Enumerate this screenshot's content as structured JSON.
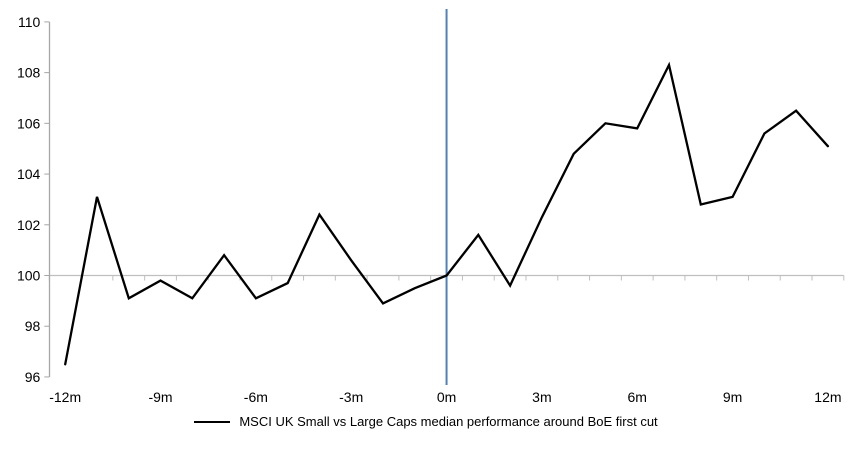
{
  "chart_data": {
    "type": "line",
    "title": "",
    "xlabel": "",
    "ylabel": "",
    "x": [
      -12,
      -11,
      -10,
      -9,
      -8,
      -7,
      -6,
      -5,
      -4,
      -3,
      -2,
      -1,
      0,
      1,
      2,
      3,
      4,
      5,
      6,
      7,
      8,
      9,
      10,
      11,
      12
    ],
    "series": [
      {
        "name": "MSCI UK Small vs Large Caps median performance around BoE first cut",
        "values": [
          96.5,
          103.1,
          99.1,
          99.8,
          99.1,
          100.8,
          99.1,
          99.7,
          102.4,
          100.6,
          98.9,
          99.5,
          100.0,
          101.6,
          99.6,
          102.3,
          104.8,
          106.0,
          105.8,
          108.3,
          102.8,
          103.1,
          105.6,
          106.5,
          105.1
        ]
      }
    ],
    "x_ticks": [
      {
        "month": -12,
        "label": "-12m"
      },
      {
        "month": -9,
        "label": "-9m"
      },
      {
        "month": -6,
        "label": "-6m"
      },
      {
        "month": -3,
        "label": "-3m"
      },
      {
        "month": 0,
        "label": "0m"
      },
      {
        "month": 3,
        "label": "3m"
      },
      {
        "month": 6,
        "label": "6m"
      },
      {
        "month": 9,
        "label": "9m"
      },
      {
        "month": 12,
        "label": "12m"
      }
    ],
    "y_ticks": [
      96,
      98,
      100,
      102,
      104,
      106,
      108,
      110
    ],
    "ylim": [
      96,
      110
    ],
    "baseline_value": 100,
    "event_line_x": 0,
    "legend_position": "bottom",
    "grid": "baseline-only",
    "colors": {
      "series": "#000000",
      "event_line": "#4f81bd",
      "baseline": "#bfbfbf",
      "axis": "#a6a6a6",
      "text": "#000000"
    }
  }
}
